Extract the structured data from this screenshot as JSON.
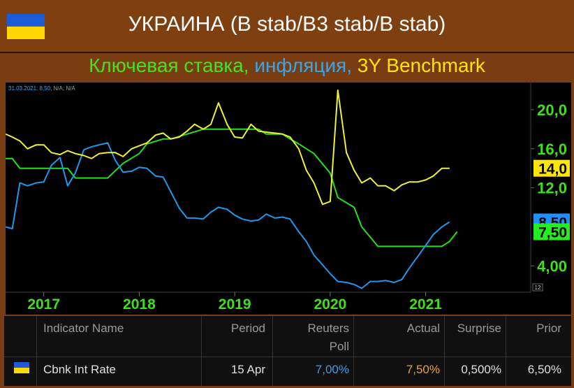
{
  "header": {
    "title": "УКРАИНА (B stab/B3 stab/B stab)"
  },
  "subtitle": {
    "part1": "Ключевая ставка,",
    "part2": "инфляция,",
    "part3": "3Y Benchmark"
  },
  "chart_legend_text": {
    "date": "31.03.2021;",
    "value": "8,50;",
    "na": "N/A; N/A"
  },
  "chart_data": {
    "type": "line",
    "x_labels": [
      "2017",
      "2018",
      "2019",
      "2020",
      "2021"
    ],
    "y_ticks": [
      "20,0",
      "16,0",
      "12,0",
      "4,00"
    ],
    "y_tick_values": [
      20,
      16,
      12,
      4
    ],
    "ylim": [
      1.3,
      22.5
    ],
    "xlim": [
      2016.6,
      2022.1
    ],
    "badges": [
      {
        "label": "14,0",
        "value": 14.0,
        "bg": "#ffe600",
        "fg": "#000000"
      },
      {
        "label": "8,50",
        "value": 8.5,
        "bg": "#1e90ff",
        "fg": "#000000"
      },
      {
        "label": "7,50",
        "value": 7.5,
        "bg": "#22ee22",
        "fg": "#000000"
      }
    ],
    "corner_label": "12",
    "series": [
      {
        "name": "Ключевая ставка",
        "color": "#22e01c",
        "x": [
          2016.6,
          2016.67,
          2016.75,
          2017.0,
          2017.25,
          2017.33,
          2017.5,
          2017.67,
          2017.83,
          2018.0,
          2018.08,
          2018.25,
          2018.33,
          2018.5,
          2018.67,
          2018.83,
          2019.0,
          2019.25,
          2019.33,
          2019.5,
          2019.58,
          2019.67,
          2019.83,
          2020.0,
          2020.08,
          2020.25,
          2020.33,
          2020.5,
          2020.67,
          2020.83,
          2021.0,
          2021.17,
          2021.25,
          2021.33
        ],
        "y": [
          15.0,
          15.0,
          14.0,
          14.0,
          14.0,
          13.0,
          13.0,
          13.0,
          14.5,
          15.5,
          16.5,
          17.0,
          17.0,
          17.5,
          18.0,
          18.0,
          18.0,
          18.0,
          17.5,
          17.5,
          17.0,
          16.5,
          15.5,
          13.5,
          11.0,
          10.0,
          8.0,
          6.0,
          6.0,
          6.0,
          6.0,
          6.0,
          6.5,
          7.5
        ]
      },
      {
        "name": "инфляция",
        "color": "#1e98ee",
        "x": [
          2016.6,
          2016.67,
          2016.75,
          2016.83,
          2016.92,
          2017.0,
          2017.08,
          2017.17,
          2017.25,
          2017.33,
          2017.42,
          2017.5,
          2017.58,
          2017.67,
          2017.75,
          2017.83,
          2017.92,
          2018.0,
          2018.08,
          2018.17,
          2018.25,
          2018.33,
          2018.42,
          2018.5,
          2018.58,
          2018.67,
          2018.75,
          2018.83,
          2018.92,
          2019.0,
          2019.08,
          2019.17,
          2019.25,
          2019.33,
          2019.42,
          2019.5,
          2019.58,
          2019.67,
          2019.75,
          2019.83,
          2019.92,
          2020.0,
          2020.08,
          2020.17,
          2020.25,
          2020.33,
          2020.42,
          2020.5,
          2020.58,
          2020.67,
          2020.75,
          2020.83,
          2020.92,
          2021.0,
          2021.08,
          2021.17,
          2021.25
        ],
        "y": [
          8.0,
          7.8,
          12.5,
          12.2,
          12.5,
          12.6,
          14.3,
          15.1,
          12.2,
          13.5,
          15.9,
          16.2,
          16.4,
          16.6,
          14.8,
          13.6,
          13.7,
          14.1,
          14.0,
          13.2,
          13.1,
          11.6,
          9.9,
          8.9,
          8.9,
          8.8,
          9.5,
          10.0,
          9.8,
          9.2,
          8.8,
          8.6,
          8.7,
          9.3,
          8.9,
          9.0,
          8.8,
          7.5,
          6.5,
          5.1,
          4.1,
          3.2,
          2.4,
          2.3,
          2.1,
          1.7,
          2.4,
          2.4,
          2.5,
          2.3,
          2.6,
          3.8,
          5.0,
          6.1,
          7.2,
          8.0,
          8.5
        ]
      },
      {
        "name": "3Y Benchmark",
        "color": "#f0f03a",
        "x": [
          2016.6,
          2016.67,
          2016.75,
          2016.83,
          2016.92,
          2017.0,
          2017.08,
          2017.17,
          2017.25,
          2017.33,
          2017.42,
          2017.5,
          2017.58,
          2017.67,
          2017.75,
          2017.83,
          2017.92,
          2018.0,
          2018.08,
          2018.17,
          2018.25,
          2018.33,
          2018.42,
          2018.5,
          2018.58,
          2018.67,
          2018.75,
          2018.83,
          2018.92,
          2019.0,
          2019.08,
          2019.17,
          2019.25,
          2019.33,
          2019.42,
          2019.5,
          2019.58,
          2019.67,
          2019.75,
          2019.83,
          2019.92,
          2020.0,
          2020.08,
          2020.17,
          2020.25,
          2020.33,
          2020.42,
          2020.5,
          2020.58,
          2020.67,
          2020.75,
          2020.83,
          2020.92,
          2021.0,
          2021.08,
          2021.17,
          2021.25
        ],
        "y": [
          17.5,
          17.2,
          16.8,
          16.0,
          16.4,
          16.4,
          15.6,
          15.4,
          15.8,
          15.5,
          15.3,
          15.0,
          15.5,
          15.6,
          15.6,
          15.2,
          16.0,
          16.3,
          16.6,
          17.4,
          17.6,
          17.0,
          17.2,
          17.8,
          18.5,
          18.0,
          18.5,
          20.7,
          18.5,
          17.2,
          17.1,
          18.5,
          17.8,
          17.7,
          17.6,
          17.5,
          17.2,
          16.0,
          13.8,
          12.5,
          10.3,
          10.6,
          22.0,
          15.6,
          13.8,
          12.5,
          13.0,
          12.2,
          12.2,
          11.7,
          12.3,
          12.6,
          12.6,
          12.8,
          13.2,
          14.0,
          14.0
        ]
      }
    ]
  },
  "table": {
    "headers": {
      "name": "Indicator Name",
      "period": "Period",
      "poll_1": "Reuters",
      "poll_2": "Poll",
      "actual": "Actual",
      "surprise": "Surprise",
      "prior": "Prior"
    },
    "row": {
      "name": "Cbnk Int Rate",
      "period": "15 Apr",
      "poll": "7,00%",
      "actual": "7,50%",
      "surprise": "0,500%",
      "prior": "6,50%"
    },
    "colors": {
      "poll": "#3aa0f0",
      "actual": "#f0a030"
    }
  }
}
